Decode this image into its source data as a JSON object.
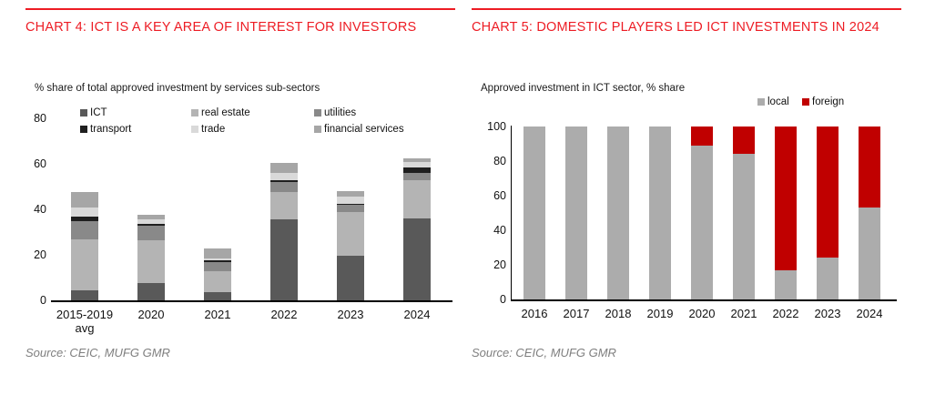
{
  "page": {
    "accent_red": "#ED1C24",
    "bar_red": "#C00000",
    "source_color": "#7f7f7f"
  },
  "chart_data": [
    {
      "type": "bar",
      "stacked": true,
      "title": "CHART 4: ICT IS A KEY AREA OF INTEREST FOR INVESTORS",
      "subtitle": "% share of total approved investment by services sub-sectors",
      "source": "Source: CEIC, MUFG GMR",
      "categories": [
        "2015-2019\navg",
        "2020",
        "2021",
        "2022",
        "2023",
        "2024"
      ],
      "series": [
        {
          "name": "ICT",
          "color": "#595959",
          "values": [
            4.5,
            7.5,
            3.5,
            35.5,
            19.5,
            36
          ]
        },
        {
          "name": "real estate",
          "color": "#b4b4b4",
          "values": [
            22.5,
            19,
            9.5,
            12,
            19.5,
            17
          ]
        },
        {
          "name": "utilities",
          "color": "#898989",
          "values": [
            8,
            6.5,
            4,
            4.5,
            3,
            3
          ]
        },
        {
          "name": "transport",
          "color": "#1f1f1f",
          "values": [
            2,
            0.5,
            0.5,
            1,
            0.5,
            2.5
          ]
        },
        {
          "name": "trade",
          "color": "#d9d9d9",
          "values": [
            4,
            2,
            1,
            3,
            3,
            2.5
          ]
        },
        {
          "name": "financial services",
          "color": "#a6a6a6",
          "values": [
            6.5,
            2,
            4.5,
            4.5,
            2.5,
            1.5
          ]
        }
      ],
      "ylim": [
        0,
        80
      ],
      "yticks": [
        0,
        20,
        40,
        60,
        80
      ],
      "grid": false,
      "legend_position": "top"
    },
    {
      "type": "bar",
      "stacked": true,
      "title": "CHART 5: DOMESTIC PLAYERS LED ICT INVESTMENTS IN 2024",
      "subtitle": "Approved investment in ICT sector, % share",
      "source": "Source: CEIC, MUFG GMR",
      "categories": [
        "2016",
        "2017",
        "2018",
        "2019",
        "2020",
        "2021",
        "2022",
        "2023",
        "2024"
      ],
      "series": [
        {
          "name": "local",
          "color": "#acacac",
          "values": [
            100,
            100,
            100,
            100,
            89,
            84,
            17,
            24,
            53
          ]
        },
        {
          "name": "foreign",
          "color": "#C00000",
          "values": [
            0,
            0,
            0,
            0,
            11,
            16,
            83,
            76,
            47
          ]
        }
      ],
      "ylim": [
        0,
        100
      ],
      "yticks": [
        0,
        20,
        40,
        60,
        80,
        100
      ],
      "grid": false,
      "legend_position": "top-right"
    }
  ]
}
